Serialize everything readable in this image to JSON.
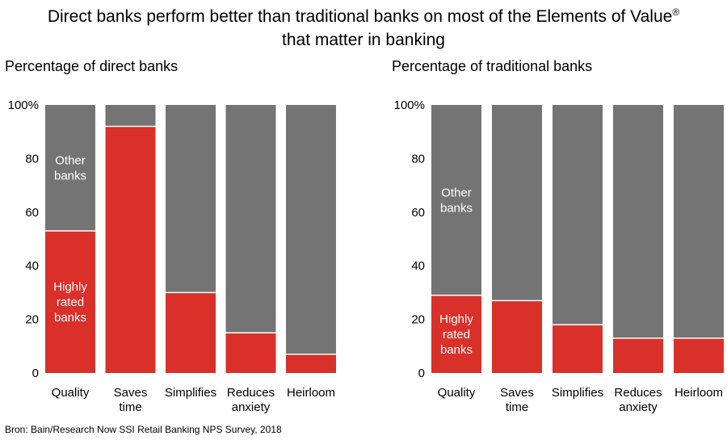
{
  "title_line1": "Direct banks perform better than traditional banks on most of the Elements of Value",
  "title_mark": "®",
  "title_line2": "that matter in banking",
  "source": "Bron: Bain/Research Now SSI Retail Banking NPS Survey, 2018",
  "colors": {
    "highly_rated": "#d9302a",
    "other": "#747474",
    "separator": "#ffffff"
  },
  "chart_data": [
    {
      "type": "bar",
      "stacked": true,
      "title": "Percentage of direct banks",
      "categories": [
        [
          "Quality"
        ],
        [
          "Saves",
          "time"
        ],
        [
          "Simplifies"
        ],
        [
          "Reduces",
          "anxiety"
        ],
        [
          "Heirloom"
        ]
      ],
      "series": [
        {
          "name": "Highly rated banks",
          "label_lines": [
            "Highly",
            "rated",
            "banks"
          ],
          "label_on": 0,
          "values": [
            53,
            92,
            30,
            15,
            7
          ]
        },
        {
          "name": "Other banks",
          "label_lines": [
            "Other",
            "banks"
          ],
          "label_on": 0,
          "values": [
            47,
            8,
            70,
            85,
            93
          ]
        }
      ],
      "yticks": [
        "0",
        "20",
        "40",
        "60",
        "80",
        "100%"
      ],
      "ylim": [
        0,
        100
      ]
    },
    {
      "type": "bar",
      "stacked": true,
      "title": "Percentage of traditional banks",
      "categories": [
        [
          "Quality"
        ],
        [
          "Saves",
          "time"
        ],
        [
          "Simplifies"
        ],
        [
          "Reduces",
          "anxiety"
        ],
        [
          "Heirloom"
        ]
      ],
      "series": [
        {
          "name": "Highly rated banks",
          "label_lines": [
            "Highly",
            "rated",
            "banks"
          ],
          "label_on": 0,
          "values": [
            29,
            27,
            18,
            13,
            13
          ]
        },
        {
          "name": "Other banks",
          "label_lines": [
            "Other",
            "banks"
          ],
          "label_on": 0,
          "values": [
            71,
            73,
            82,
            87,
            87
          ]
        }
      ],
      "yticks": [
        "0",
        "20",
        "40",
        "60",
        "80",
        "100%"
      ],
      "ylim": [
        0,
        100
      ]
    }
  ]
}
